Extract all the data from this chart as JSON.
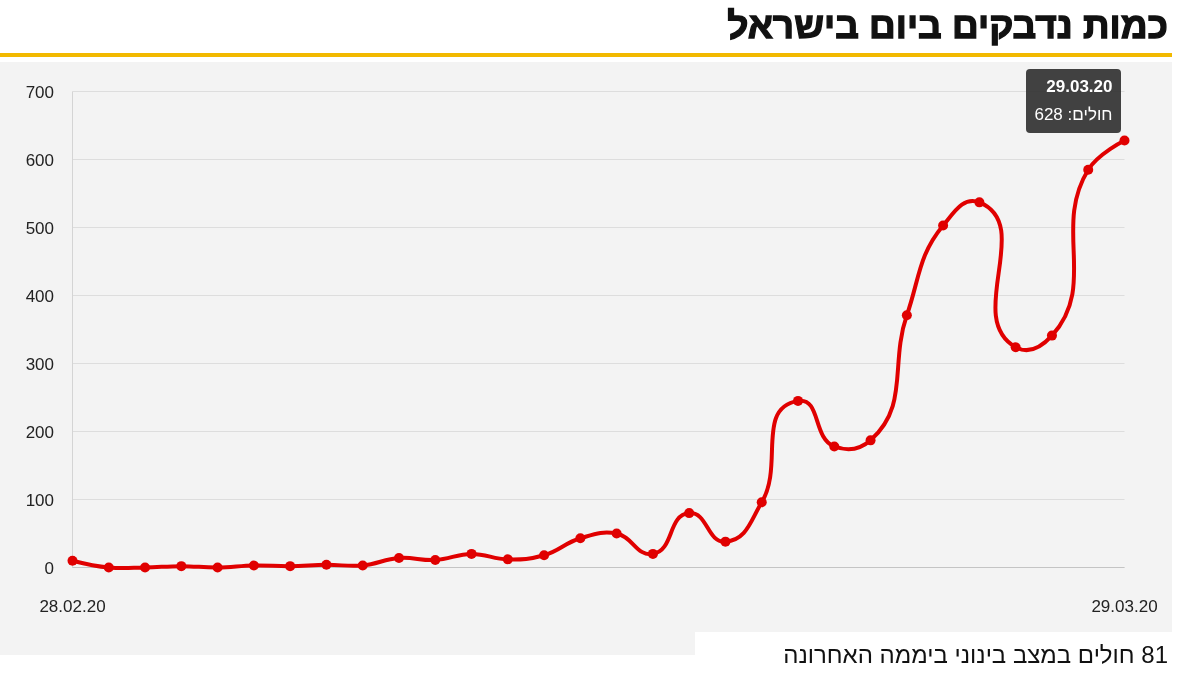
{
  "chart_data": {
    "type": "line",
    "title": "כמות נדבקים ביום בישראל",
    "categories": [
      "28.02.20",
      null,
      null,
      null,
      null,
      null,
      null,
      null,
      null,
      null,
      null,
      null,
      null,
      null,
      null,
      null,
      null,
      null,
      null,
      null,
      null,
      null,
      null,
      null,
      null,
      null,
      null,
      null,
      null,
      "29.03.20"
    ],
    "series": [
      {
        "color": "#e00000",
        "values": [
          10,
          0,
          0,
          2,
          0,
          3,
          2,
          4,
          3,
          14,
          11,
          20,
          12,
          18,
          43,
          50,
          20,
          80,
          38,
          96,
          245,
          178,
          187,
          371,
          503,
          537,
          324,
          341,
          585,
          628
        ]
      }
    ],
    "ylim": [
      0,
      700
    ],
    "yticks": [
      0,
      100,
      200,
      300,
      400,
      500,
      600,
      700
    ],
    "grid": "y",
    "marker": "circle",
    "line_style": "solid",
    "annotations": [
      {
        "text": "29.03.20\nחולים: 628",
        "x": "29.03.20",
        "y": 628
      },
      "81 חולים במצב בינוני ביממה האחרונה"
    ]
  }
}
